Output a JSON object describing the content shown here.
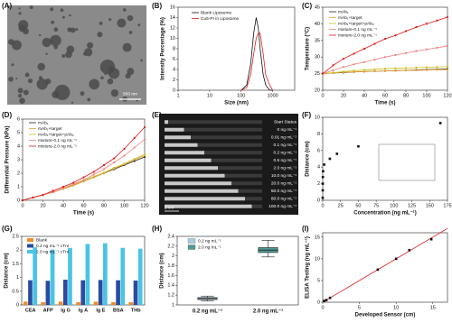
{
  "chart_data": [
    {
      "type": "image",
      "label": "(A)",
      "scale_bar": "500 nm"
    },
    {
      "type": "line",
      "label": "(B)",
      "xlabel": "Size (nm)",
      "ylabel": "Intensity Percentage (%)",
      "xlog": true,
      "xlim": [
        1,
        5000
      ],
      "xticks": [
        1,
        10,
        100,
        1000
      ],
      "ylim": [
        0,
        16
      ],
      "yticks": [
        0,
        2,
        4,
        6,
        8,
        10,
        12,
        14,
        16
      ],
      "markers": false,
      "x": [
        100,
        150,
        200,
        250,
        300,
        350,
        400,
        500,
        600,
        800,
        1000
      ],
      "series": [
        {
          "name": "Blank Liposome",
          "color": "#111111",
          "values": [
            0,
            1,
            5,
            11,
            14,
            12,
            8,
            3,
            1,
            0,
            0
          ]
        },
        {
          "name": "Cu5-PI in Liposome",
          "color": "#e02020",
          "values": [
            0,
            0.5,
            3,
            7,
            10,
            11,
            11,
            7,
            3,
            1,
            0
          ]
        }
      ]
    },
    {
      "type": "line",
      "label": "(C)",
      "xlabel": "Time (s)",
      "ylabel": "Temperature (°C)",
      "xlim": [
        0,
        120
      ],
      "xticks": [
        0,
        20,
        40,
        60,
        80,
        100,
        120
      ],
      "ylim": [
        20,
        45
      ],
      "yticks": [
        20,
        25,
        30,
        35,
        40,
        45
      ],
      "markers": true,
      "x": [
        0,
        10,
        20,
        30,
        40,
        50,
        60,
        70,
        80,
        90,
        100,
        110,
        120
      ],
      "series": [
        {
          "name": "mAb₁",
          "color": "#222222",
          "values": [
            25,
            25.2,
            25.3,
            25.5,
            25.6,
            25.7,
            25.8,
            25.9,
            26,
            26.1,
            26.2,
            26.3,
            26.4
          ]
        },
        {
          "name": "mAb₁+target",
          "color": "#f0a030",
          "values": [
            25,
            25.2,
            25.4,
            25.5,
            25.6,
            25.7,
            25.8,
            25.9,
            26,
            26,
            26.1,
            26.2,
            26.2
          ]
        },
        {
          "name": "mAb₁+target+pAb₂",
          "color": "#c8c020",
          "values": [
            25,
            25.3,
            25.6,
            25.9,
            26.1,
            26.3,
            26.5,
            26.6,
            26.7,
            26.8,
            26.9,
            27,
            27.1
          ]
        },
        {
          "name": "mixture-0.1 ng mL⁻¹",
          "color": "#f08080",
          "values": [
            25,
            26,
            27,
            27.8,
            28.5,
            29.2,
            30,
            30.6,
            31.2,
            31.8,
            32.3,
            32.8,
            33.3
          ]
        },
        {
          "name": "mixture-2.0 ng mL⁻¹",
          "color": "#e01818",
          "values": [
            25,
            27.5,
            29.5,
            31,
            32.5,
            34,
            35.5,
            36.5,
            37.8,
            39,
            40,
            41,
            42
          ]
        }
      ]
    },
    {
      "type": "line",
      "label": "(D)",
      "xlabel": "Time (s)",
      "ylabel": "Differential Pressure (kPa)",
      "xlim": [
        0,
        120
      ],
      "xticks": [
        0,
        20,
        40,
        60,
        80,
        100,
        120
      ],
      "ylim": [
        0,
        6
      ],
      "yticks": [
        0,
        1,
        2,
        3,
        4,
        5,
        6
      ],
      "markers": true,
      "x": [
        0,
        10,
        20,
        30,
        40,
        50,
        60,
        70,
        80,
        90,
        100,
        110,
        120
      ],
      "series": [
        {
          "name": "mAb₁",
          "color": "#222222",
          "values": [
            0,
            0.2,
            0.4,
            0.6,
            0.85,
            1.1,
            1.4,
            1.7,
            2,
            2.3,
            2.6,
            2.9,
            3.2
          ]
        },
        {
          "name": "mAb₁+target",
          "color": "#f0a030",
          "values": [
            0,
            0.2,
            0.4,
            0.6,
            0.85,
            1.1,
            1.4,
            1.7,
            2,
            2.35,
            2.65,
            3,
            3.3
          ]
        },
        {
          "name": "mAb₁+target+pAb₂",
          "color": "#c8c020",
          "values": [
            0,
            0.2,
            0.4,
            0.62,
            0.88,
            1.15,
            1.45,
            1.75,
            2.05,
            2.4,
            2.7,
            3.05,
            3.4
          ]
        },
        {
          "name": "mixture-0.1 ng mL⁻¹",
          "color": "#f08080",
          "values": [
            0,
            0.2,
            0.4,
            0.6,
            0.9,
            1.2,
            1.5,
            1.9,
            2.3,
            2.8,
            3.3,
            3.9,
            4.5
          ]
        },
        {
          "name": "mixture-2.0 ng mL⁻¹",
          "color": "#e01818",
          "values": [
            0,
            0.2,
            0.4,
            0.7,
            1,
            1.3,
            1.7,
            2.1,
            2.6,
            3.1,
            3.8,
            4.6,
            5.4
          ]
        }
      ]
    },
    {
      "type": "image",
      "label": "(E)",
      "scale_bar": "2 cm",
      "rows": [
        "Start Status",
        "0 ng mL⁻¹",
        "0.01 ng mL⁻¹",
        "0.1 ng mL⁻¹",
        "0.2 ng mL⁻¹",
        "0.5 ng mL⁻¹",
        "2.0 ng mL⁻¹",
        "10.0 ng mL⁻¹",
        "20.0 ng mL⁻¹",
        "50.0 ng mL⁻¹",
        "80.0 ng mL⁻¹",
        "100.0 ng mL⁻¹"
      ]
    },
    {
      "type": "scatter",
      "label": "(F)",
      "xlabel": "Concentration (ng mL⁻¹)",
      "ylabel": "Distance (cm)",
      "color": "#111111",
      "xlim": [
        0,
        175
      ],
      "xticks": [
        0,
        25,
        50,
        75,
        100,
        125,
        150,
        175
      ],
      "ylim": [
        0,
        10
      ],
      "yticks": [
        0,
        2,
        4,
        6,
        8,
        10
      ],
      "x": [
        0,
        0.01,
        0.1,
        0.2,
        0.5,
        2,
        10,
        20,
        50,
        165
      ],
      "values": [
        0.3,
        1.2,
        2,
        2.8,
        3.5,
        4.3,
        5,
        5.6,
        6.5,
        9.3
      ]
    },
    {
      "type": "grouped_bar",
      "label": "(G)",
      "ylabel": "Distance (cm)",
      "ylim": [
        0,
        2.5
      ],
      "yticks": [
        0,
        0.5,
        1,
        1.5,
        2,
        2.5
      ],
      "categories": [
        "CEA",
        "AFP",
        "Ig G",
        "Ig A",
        "Ig E",
        "BSA",
        "THb"
      ],
      "series": [
        {
          "name": "Blank",
          "color": "#f08c28",
          "values": [
            0.12,
            0.1,
            0.12,
            0.1,
            0.12,
            0.1,
            0.1
          ]
        },
        {
          "name": "0.2 ng mL⁻¹ cTnI",
          "color": "#2c4aa0",
          "values": [
            0.9,
            0.88,
            0.92,
            0.9,
            0.91,
            0.9,
            0.89
          ]
        },
        {
          "name": "2.0 ng mL⁻¹ cTnI",
          "color": "#48c4e4",
          "values": [
            2.1,
            2.02,
            2.08,
            2.22,
            2.25,
            2.08,
            2.05
          ]
        }
      ]
    },
    {
      "type": "box",
      "label": "(H)",
      "ylabel": "Distance (cm)",
      "ylim": [
        1,
        2.4
      ],
      "yticks": [
        1,
        1.2,
        1.4,
        1.6,
        1.8,
        2,
        2.2,
        2.4
      ],
      "categories": [
        "0.2 ng mL⁻¹",
        "2.0 ng mL⁻¹"
      ],
      "colors": [
        "#a8cce4",
        "#4f9a94"
      ],
      "boxes": [
        {
          "min": 1.08,
          "q1": 1.11,
          "median": 1.13,
          "q3": 1.15,
          "max": 1.18
        },
        {
          "min": 1.98,
          "q1": 2.07,
          "median": 2.12,
          "q3": 2.17,
          "max": 2.32
        }
      ]
    },
    {
      "type": "scatter",
      "label": "(I)",
      "xlabel": "Developed Sensor (cm)",
      "ylabel": "ELISA Testing (ng mL⁻¹)",
      "color": "#111111",
      "xlim": [
        0,
        17
      ],
      "xticks": [
        0,
        5,
        10,
        15
      ],
      "ylim": [
        0,
        16
      ],
      "yticks": [
        0,
        5,
        10,
        15
      ],
      "x": [
        0.2,
        0.5,
        1,
        7.5,
        10,
        11.8,
        14.8
      ],
      "values": [
        0.3,
        0.5,
        1,
        7.5,
        10,
        12,
        14.5
      ],
      "fit": {
        "color": "#e02020",
        "x": [
          0,
          17
        ],
        "values": [
          0,
          17
        ]
      }
    }
  ]
}
